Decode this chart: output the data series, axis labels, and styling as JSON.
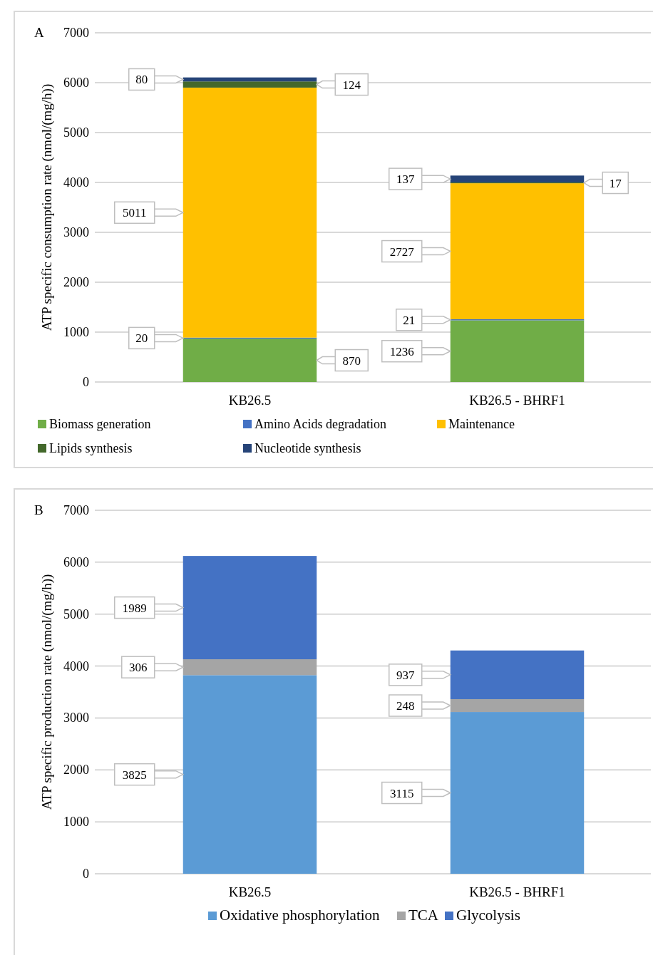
{
  "chart_data": [
    {
      "type": "bar",
      "title": "A",
      "ylabel": "ATP specific consumption rate (nmol/(mg/h))",
      "categories": [
        "KB26.5",
        "KB26.5 - BHRF1"
      ],
      "stacked": true,
      "data_labels": true,
      "legend": "bottom",
      "grid": "y",
      "ylim": [
        0,
        7000
      ],
      "yticks": [
        0,
        1000,
        2000,
        3000,
        4000,
        5000,
        6000,
        7000
      ],
      "series": [
        {
          "name": "Biomass generation",
          "color": "#70ad47",
          "values": [
            870,
            1236
          ]
        },
        {
          "name": "Amino Acids degradation",
          "color": "#4472c4",
          "values": [
            20,
            21
          ]
        },
        {
          "name": "Maintenance",
          "color": "#ffc000",
          "values": [
            5011,
            2727
          ]
        },
        {
          "name": "Lipids synthesis",
          "color": "#43682b",
          "values": [
            124,
            17
          ]
        },
        {
          "name": "Nucleotide synthesis",
          "color": "#264478",
          "values": [
            80,
            137
          ]
        }
      ]
    },
    {
      "type": "bar",
      "title": "B",
      "ylabel": "ATP specific production rate (nmol/(mg/h))",
      "categories": [
        "KB26.5",
        "KB26.5 - BHRF1"
      ],
      "stacked": true,
      "data_labels": true,
      "legend": "bottom",
      "grid": "y",
      "ylim": [
        0,
        7000
      ],
      "yticks": [
        0,
        1000,
        2000,
        3000,
        4000,
        5000,
        6000,
        7000
      ],
      "series": [
        {
          "name": "Oxidative phosphorylation",
          "color": "#5b9bd5",
          "values": [
            3825,
            3115
          ]
        },
        {
          "name": "TCA",
          "color": "#a5a5a5",
          "values": [
            306,
            248
          ]
        },
        {
          "name": "Glycolysis",
          "color": "#4472c4",
          "values": [
            1989,
            937
          ]
        }
      ]
    }
  ]
}
